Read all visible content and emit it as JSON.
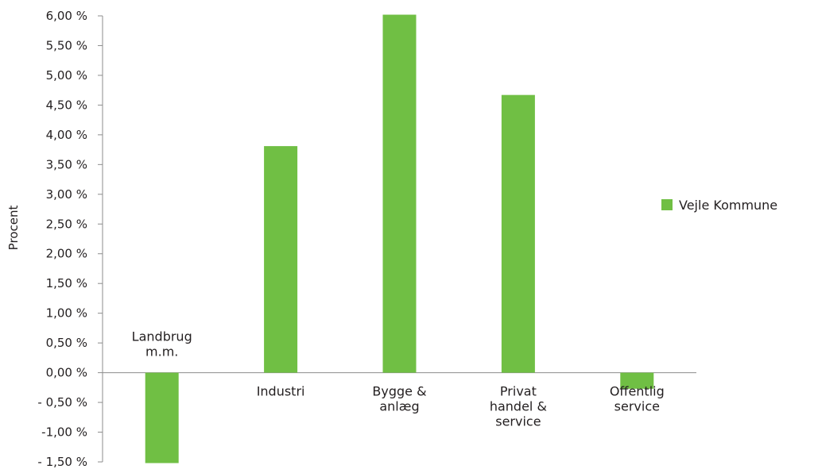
{
  "chart_data": {
    "type": "bar",
    "categories": [
      [
        "Landbrug",
        "m.m."
      ],
      [
        "Industri"
      ],
      [
        "Bygge &",
        "anlæg"
      ],
      [
        "Privat",
        "handel &",
        "service"
      ],
      [
        "Offentlig",
        "service"
      ]
    ],
    "series": [
      {
        "name": "Vejle Kommune",
        "values": [
          -1.52,
          3.81,
          6.02,
          4.67,
          -0.27
        ],
        "color": "#70bf44"
      }
    ],
    "title": "",
    "xlabel": "",
    "ylabel": "Procent",
    "ylim": [
      -1.5,
      6.0
    ],
    "ytick_step": 0.5,
    "ytick_labels": [
      "- 1,50 %",
      "-1,00 %",
      "- 0,50 %",
      "0,00 %",
      "0,50 %",
      "1,00 %",
      "1,50 %",
      "2,00 %",
      "2,50 %",
      "3,00 %",
      "3,50 %",
      "4,00 %",
      "4,50 %",
      "5,00 %",
      "5,50 %",
      "6,00 %"
    ],
    "grid": false,
    "legend_position": "right",
    "axis_color": "#8c8c8c"
  }
}
